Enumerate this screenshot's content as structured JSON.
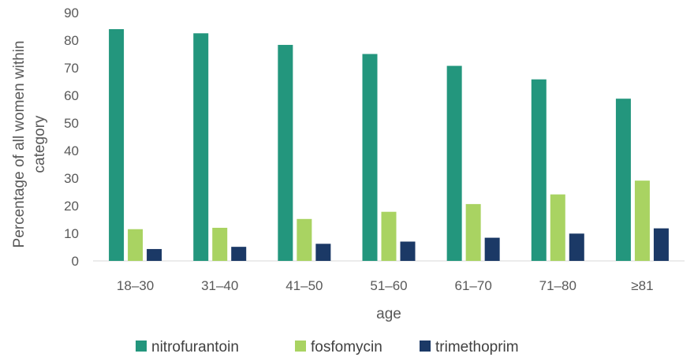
{
  "chart_data": {
    "type": "bar",
    "categories": [
      "18–30",
      "31–40",
      "41–50",
      "51–60",
      "61–70",
      "71–80",
      "≥81"
    ],
    "series": [
      {
        "name": "nitrofurantoin",
        "values": [
          84,
          82.5,
          78.3,
          75,
          70.7,
          65.8,
          58.8
        ]
      },
      {
        "name": "fosfomycin",
        "values": [
          11.5,
          12,
          15.2,
          17.8,
          20.6,
          24.1,
          29.1
        ]
      },
      {
        "name": "trimethoprim",
        "values": [
          4.3,
          5.1,
          6.2,
          7,
          8.4,
          9.9,
          11.8
        ]
      }
    ],
    "xlabel": "age",
    "ylabel_lines": [
      "Percentage of all women within",
      "category"
    ],
    "ylim": [
      0,
      90
    ],
    "yticks": [
      0,
      10,
      20,
      30,
      40,
      50,
      60,
      70,
      80,
      90
    ],
    "grid": false,
    "legend": "bottom",
    "colors": [
      "#23967D",
      "#A9D362",
      "#1B3966"
    ]
  }
}
